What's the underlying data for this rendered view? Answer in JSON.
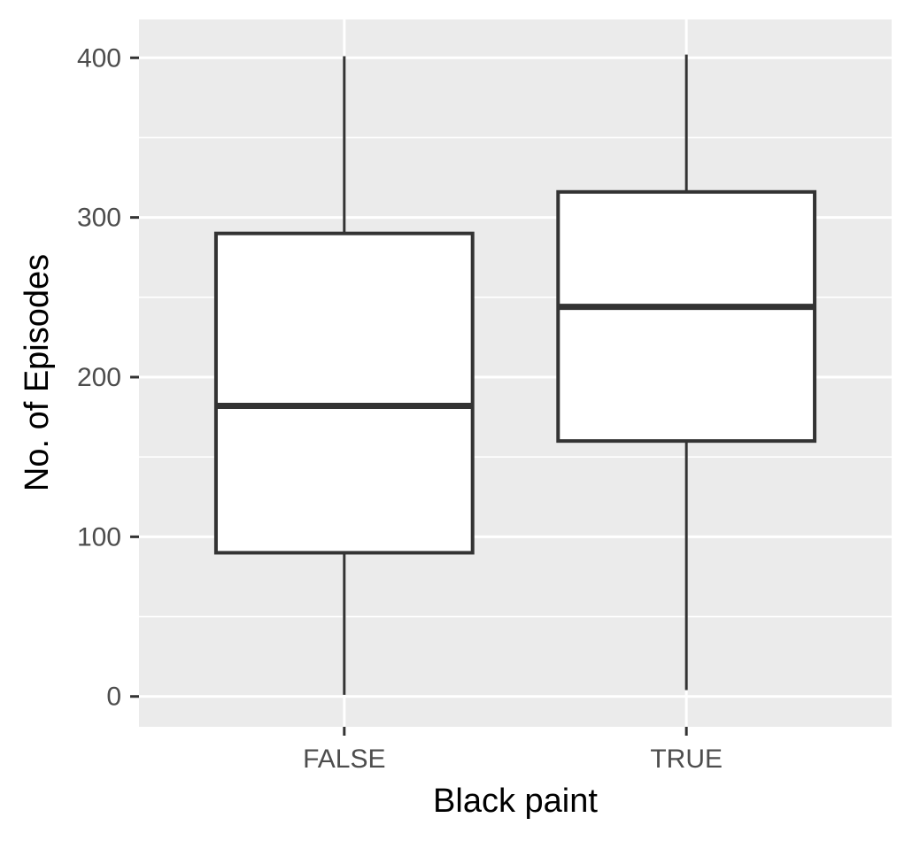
{
  "chart_data": {
    "type": "boxplot",
    "title": "",
    "xlabel": "Black paint",
    "ylabel": "No. of Episodes",
    "categories": [
      "FALSE",
      "TRUE"
    ],
    "boxes": [
      {
        "category": "FALSE",
        "min": 1,
        "q1": 90,
        "median": 182,
        "q3": 290,
        "max": 401
      },
      {
        "category": "TRUE",
        "min": 4,
        "q1": 160,
        "median": 244,
        "q3": 316,
        "max": 402
      }
    ],
    "y_ticks": [
      0,
      100,
      200,
      300,
      400
    ],
    "y_tick_labels": [
      "0",
      "100",
      "200",
      "300",
      "400"
    ],
    "ylim": [
      -19,
      424
    ],
    "grid": true,
    "colors": {
      "panel_background": "#ebebeb",
      "grid_line": "#ffffff",
      "box_fill": "#ffffff",
      "box_stroke": "#333333"
    }
  }
}
